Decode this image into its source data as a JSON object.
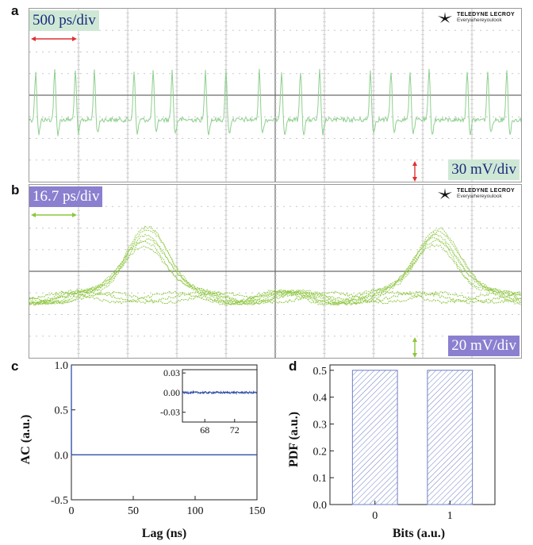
{
  "panels": {
    "a": {
      "letter": "a",
      "timebase_label": "500 ps/div",
      "vscale_label": "30 mV/div",
      "logo": {
        "brand": "TELEDYNE LECROY",
        "tagline": "Everywhereyoulook"
      },
      "trace_color": "#8fcf8f",
      "label_bg": "#cfe8d6",
      "label_color": "#1a2a7a"
    },
    "b": {
      "letter": "b",
      "timebase_label": "16.7 ps/div",
      "vscale_label": "20 mV/div",
      "logo": {
        "brand": "TELEDYNE LECROY",
        "tagline": "Everywhereyoulook"
      },
      "trace_color": "#8dc63f",
      "label_bg": "#8b7fd0",
      "label_color": "#ffffff"
    },
    "c": {
      "letter": "c"
    },
    "d": {
      "letter": "d"
    }
  },
  "chart_data": [
    {
      "id": "c",
      "type": "line",
      "xlabel": "Lag (ns)",
      "ylabel": "AC (a.u.)",
      "xlim": [
        0,
        150
      ],
      "ylim": [
        -0.5,
        1.0
      ],
      "xticks": [
        0,
        50,
        100,
        150
      ],
      "yticks": [
        -0.5,
        0.0,
        0.5,
        1.0
      ],
      "ytick_labels": [
        "-0.5",
        "0.0",
        "0.5",
        "1.0"
      ],
      "series": [
        {
          "x": [
            0,
            0,
            0.05,
            150
          ],
          "y": [
            0,
            1.0,
            0.0,
            0.0
          ],
          "color": "#3050a8"
        }
      ],
      "inset": {
        "xlim": [
          65,
          75
        ],
        "ylim": [
          -0.045,
          0.035
        ],
        "xticks": [
          68,
          72
        ],
        "yticks": [
          -0.03,
          0.0,
          0.03
        ],
        "ytick_labels": [
          "-0.03",
          "0.00",
          "0.03"
        ],
        "series_level": 0.0,
        "noise": 0.0015
      }
    },
    {
      "id": "d",
      "type": "bar",
      "xlabel": "Bits (a.u.)",
      "ylabel": "PDF (a.u.)",
      "categories": [
        "0",
        "1"
      ],
      "values": [
        0.5,
        0.5
      ],
      "xlim": [
        -0.6,
        1.6
      ],
      "ylim": [
        0,
        0.52
      ],
      "yticks": [
        0.0,
        0.1,
        0.2,
        0.3,
        0.4,
        0.5
      ],
      "ytick_labels": [
        "0.0",
        "0.1",
        "0.2",
        "0.3",
        "0.4",
        "0.5"
      ],
      "bar_style": "hatched",
      "bar_color": "#6d7fc4"
    }
  ]
}
